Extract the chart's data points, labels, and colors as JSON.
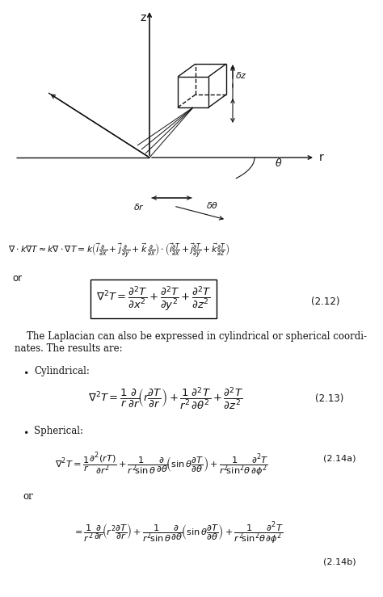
{
  "background_color": "#ffffff",
  "fig_width": 4.74,
  "fig_height": 7.39,
  "dpi": 100,
  "text_color": "#111111",
  "label_212": "(2.12)",
  "label_213": "(2.13)",
  "label_214a": "(2.14a)",
  "label_214b": "(2.14b)"
}
